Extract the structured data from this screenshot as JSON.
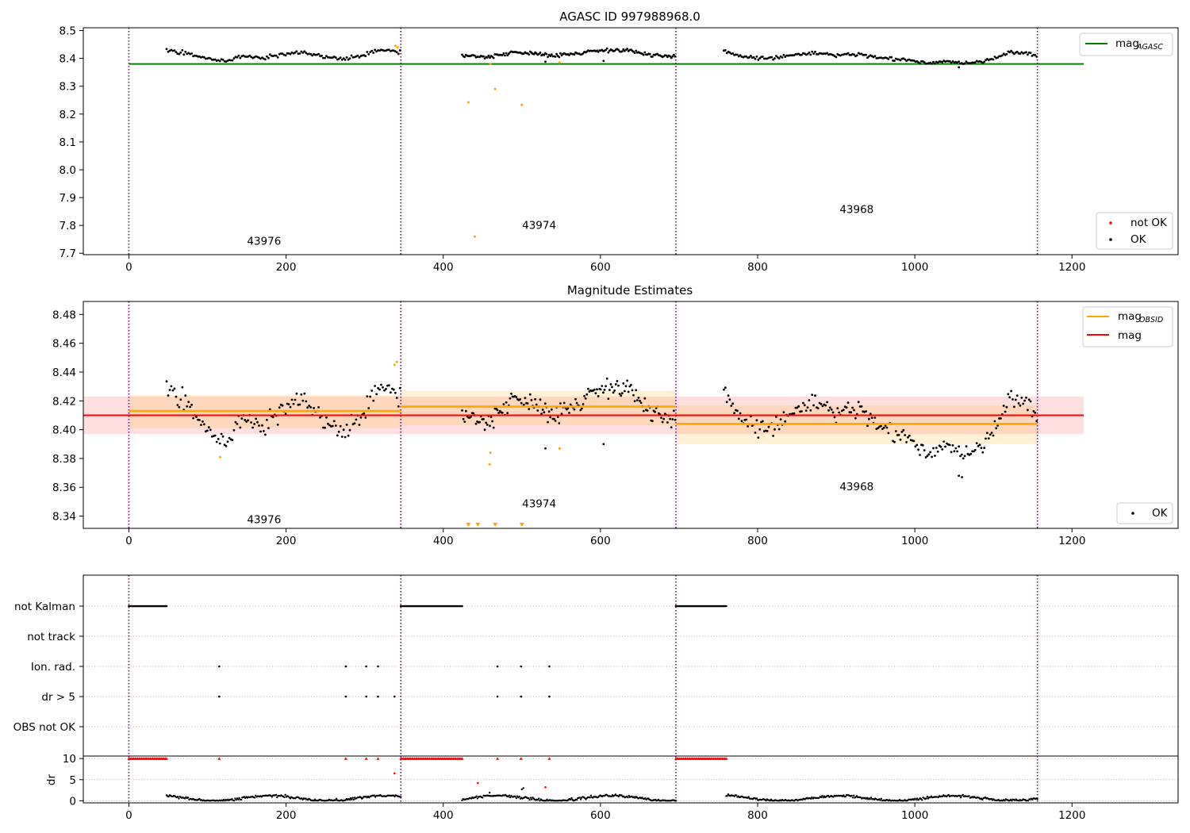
{
  "chart_data": [
    {
      "id": "top",
      "type": "scatter",
      "title": "AGASC ID 997988968.0",
      "xlim": [
        -58,
        1335
      ],
      "ylim": [
        7.695,
        8.51
      ],
      "xticks": [
        0,
        200,
        400,
        600,
        800,
        1000,
        1200
      ],
      "yticks": [
        7.7,
        7.8,
        7.9,
        8.0,
        8.1,
        8.2,
        8.3,
        8.4,
        8.5
      ],
      "ytick_labels": [
        "7.7",
        "7.8",
        "7.9",
        "8.0",
        "8.1",
        "8.2",
        "8.3",
        "8.4",
        "8.5"
      ],
      "obs_boundaries": [
        0,
        346,
        696,
        1156
      ],
      "obsid_labels": [
        {
          "text": "43976",
          "x": 172,
          "y": 7.73
        },
        {
          "text": "43974",
          "x": 522,
          "y": 7.788
        },
        {
          "text": "43968",
          "x": 926,
          "y": 7.845
        }
      ],
      "mag_agasc": {
        "value": 8.38,
        "x_range": [
          0,
          1215
        ]
      },
      "ok_segments": [
        {
          "x": [
            48,
            345
          ],
          "level": [
            8.43,
            8.42,
            8.4,
            8.39,
            8.41,
            8.4,
            8.415,
            8.42,
            8.405,
            8.4,
            8.41,
            8.43,
            8.425
          ],
          "n": 150,
          "jitter": 0.006
        },
        {
          "x": [
            424,
            695
          ],
          "level": [
            8.41,
            8.405,
            8.42,
            8.42,
            8.41,
            8.42,
            8.43,
            8.43,
            8.41,
            8.405
          ],
          "n": 170,
          "jitter": 0.006
        },
        {
          "x": [
            757,
            1155
          ],
          "level": [
            8.425,
            8.405,
            8.4,
            8.41,
            8.42,
            8.41,
            8.415,
            8.4,
            8.395,
            8.385,
            8.39,
            8.38,
            8.4,
            8.425,
            8.41
          ],
          "n": 210,
          "jitter": 0.006
        }
      ],
      "ok_outliers": [
        [
          530,
          8.388
        ],
        [
          604,
          8.391
        ],
        [
          1056,
          8.368
        ]
      ],
      "orange_points": [
        [
          339,
          8.445
        ],
        [
          342,
          8.44
        ],
        [
          432,
          8.242
        ],
        [
          440,
          7.76
        ],
        [
          460,
          8.38
        ],
        [
          466,
          8.29
        ],
        [
          500,
          8.233
        ],
        [
          548,
          8.385
        ]
      ],
      "legend": {
        "position": "top-right",
        "entries": [
          {
            "label": "mag",
            "sub": "AGASC",
            "color": "#008000"
          }
        ]
      },
      "legend2": {
        "position": "lower-right",
        "entries": [
          {
            "label": "not OK",
            "color": "#ff0000"
          },
          {
            "label": "OK",
            "color": "#000000"
          }
        ]
      }
    },
    {
      "id": "middle",
      "type": "scatter",
      "title": "Magnitude Estimates",
      "xlim": [
        -58,
        1335
      ],
      "ylim": [
        8.3315,
        8.489
      ],
      "xticks": [
        0,
        200,
        400,
        600,
        800,
        1000,
        1200
      ],
      "yticks": [
        8.34,
        8.36,
        8.38,
        8.4,
        8.42,
        8.44,
        8.46,
        8.48
      ],
      "ytick_labels": [
        "8.34",
        "8.36",
        "8.38",
        "8.40",
        "8.42",
        "8.44",
        "8.46",
        "8.48"
      ],
      "obs_boundaries": [
        0,
        346,
        696,
        1156
      ],
      "obsid_labels": [
        {
          "text": "43976",
          "x": 172,
          "y": 8.335
        },
        {
          "text": "43974",
          "x": 522,
          "y": 8.346
        },
        {
          "text": "43968",
          "x": 926,
          "y": 8.358
        }
      ],
      "mag": {
        "value": 8.41,
        "band": [
          8.397,
          8.423
        ],
        "x_range": [
          -58,
          1215
        ]
      },
      "mag_obsid": [
        {
          "x": [
            0,
            346
          ],
          "value": 8.413,
          "band": [
            8.401,
            8.424
          ]
        },
        {
          "x": [
            346,
            696
          ],
          "value": 8.416,
          "band": [
            8.403,
            8.427
          ]
        },
        {
          "x": [
            696,
            1156
          ],
          "value": 8.404,
          "band": [
            8.39,
            8.417
          ]
        }
      ],
      "ok_segments": [
        {
          "x": [
            48,
            345
          ],
          "level": [
            8.43,
            8.42,
            8.4,
            8.39,
            8.41,
            8.4,
            8.415,
            8.42,
            8.405,
            8.4,
            8.41,
            8.43,
            8.425
          ],
          "n": 150,
          "jitter": 0.006
        },
        {
          "x": [
            424,
            695
          ],
          "level": [
            8.41,
            8.405,
            8.42,
            8.42,
            8.41,
            8.42,
            8.43,
            8.43,
            8.41,
            8.405
          ],
          "n": 170,
          "jitter": 0.006
        },
        {
          "x": [
            757,
            1155
          ],
          "level": [
            8.425,
            8.405,
            8.4,
            8.41,
            8.42,
            8.41,
            8.415,
            8.4,
            8.395,
            8.385,
            8.39,
            8.38,
            8.4,
            8.425,
            8.41
          ],
          "n": 210,
          "jitter": 0.006
        }
      ],
      "ok_outliers": [
        [
          530,
          8.387
        ],
        [
          604,
          8.39
        ],
        [
          1056,
          8.368
        ],
        [
          1060,
          8.367
        ]
      ],
      "orange_points": [
        [
          116,
          8.381
        ],
        [
          338,
          8.445
        ],
        [
          341,
          8.447
        ],
        [
          460,
          8.384
        ],
        [
          459,
          8.376
        ],
        [
          548,
          8.387
        ]
      ],
      "orange_triangles": [
        432,
        444,
        466,
        500
      ],
      "legend": {
        "position": "top-right",
        "entries": [
          {
            "label": "mag",
            "sub": "OBSID",
            "color": "#ffa500"
          },
          {
            "label": "mag",
            "color": "#ff0000"
          }
        ]
      },
      "legend2": {
        "position": "lower-right",
        "entries": [
          {
            "label": "OK",
            "color": "#000000"
          }
        ]
      }
    },
    {
      "id": "flags",
      "type": "scatter",
      "xlim": [
        -58,
        1335
      ],
      "rows": [
        "not Kalman",
        "not track",
        "Ion. rad.",
        "dr > 5",
        "OBS not OK"
      ],
      "obs_boundaries": [
        0,
        346,
        696,
        1156
      ],
      "not_kalman_ranges": [
        [
          0,
          48
        ],
        [
          346,
          424
        ],
        [
          696,
          760
        ]
      ],
      "ion_rad_x": [
        115,
        276,
        302,
        317,
        469,
        499,
        535
      ],
      "dr_gt5_x": [
        115,
        276,
        302,
        317,
        338,
        469,
        499,
        535
      ]
    },
    {
      "id": "dr",
      "type": "scatter",
      "ylabel": "dr",
      "xlim": [
        -58,
        1335
      ],
      "ylim": [
        -0.5,
        10.6
      ],
      "xticks": [
        0,
        200,
        400,
        600,
        800,
        1000,
        1200
      ],
      "yticks": [
        0,
        5,
        10
      ],
      "ytick_labels": [
        "0",
        "5",
        "10"
      ],
      "obs_boundaries": [
        0,
        346,
        696,
        1156
      ],
      "capped_ranges": [
        [
          0,
          48
        ],
        [
          346,
          424
        ],
        [
          696,
          760
        ]
      ],
      "capped_x": [
        115,
        276,
        302,
        317,
        469,
        499,
        535
      ],
      "red_points": [
        [
          338,
          6.5
        ],
        [
          444,
          4.2
        ],
        [
          530,
          3.2
        ]
      ],
      "black_points": [
        [
          459,
          1.9
        ],
        [
          464,
          1.2
        ],
        [
          500,
          2.7
        ],
        [
          502,
          3.0
        ]
      ],
      "ok_segments": [
        [
          48,
          346
        ],
        [
          424,
          696
        ],
        [
          760,
          1156
        ]
      ]
    }
  ]
}
